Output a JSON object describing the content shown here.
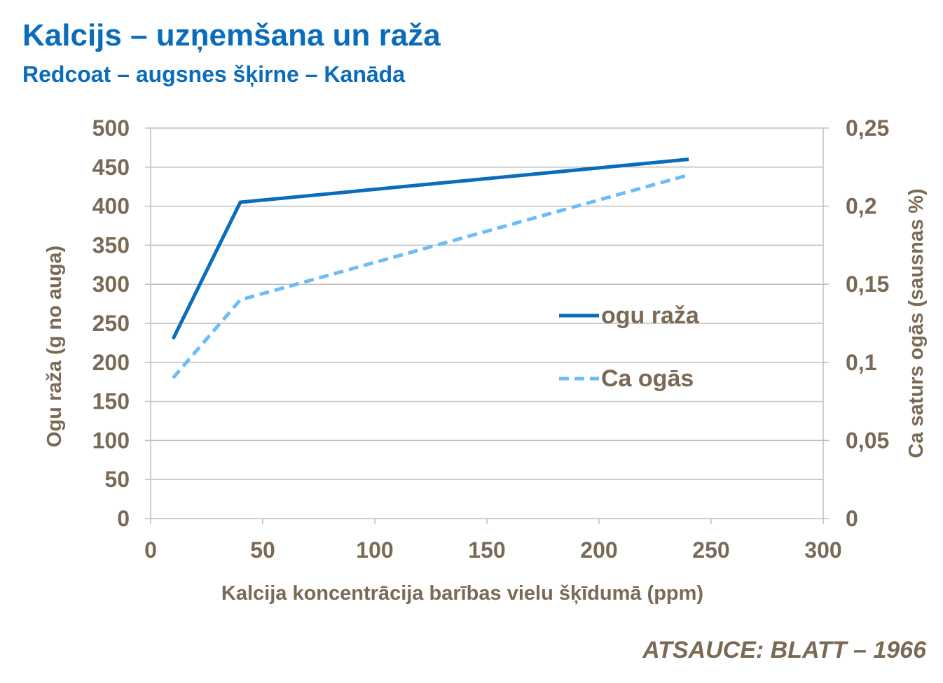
{
  "title": "Kalcijs – uzņemšana un raža",
  "subtitle": "Redcoat – augsnes šķirne – Kanāda",
  "source": "ATSAUCE: BLATT – 1966",
  "colors": {
    "title": "#0a6cba",
    "axis_text": "#7a6a55",
    "grid": "#bfbfbf",
    "series_yield": "#0a6cba",
    "series_ca": "#6cbcf5"
  },
  "chart_data": {
    "type": "line",
    "xlabel": "Kalcija koncentrācija barības vielu šķīdumā (ppm)",
    "ylabel": "Ogu raža (g no auga)",
    "y2label": "Ca saturs ogās (sausnas %)",
    "xlim": [
      0,
      300
    ],
    "ylim": [
      0,
      500
    ],
    "y2lim": [
      0,
      0.25
    ],
    "x_ticks": [
      "0",
      "50",
      "100",
      "150",
      "200",
      "250",
      "300"
    ],
    "y_ticks": [
      "0",
      "50",
      "100",
      "150",
      "200",
      "250",
      "300",
      "350",
      "400",
      "450",
      "500"
    ],
    "y2_ticks": [
      "0",
      "0,05",
      "0,1",
      "0,15",
      "0,2",
      "0,25"
    ],
    "grid": true,
    "legend_position": "center-right",
    "series": [
      {
        "name": "ogu raža",
        "axis": "left",
        "style": "solid",
        "x": [
          10,
          40,
          240
        ],
        "values": [
          230,
          405,
          460
        ]
      },
      {
        "name": "Ca ogās",
        "axis": "right",
        "style": "dashed",
        "x": [
          10,
          40,
          240
        ],
        "values": [
          0.09,
          0.14,
          0.22
        ]
      }
    ]
  }
}
